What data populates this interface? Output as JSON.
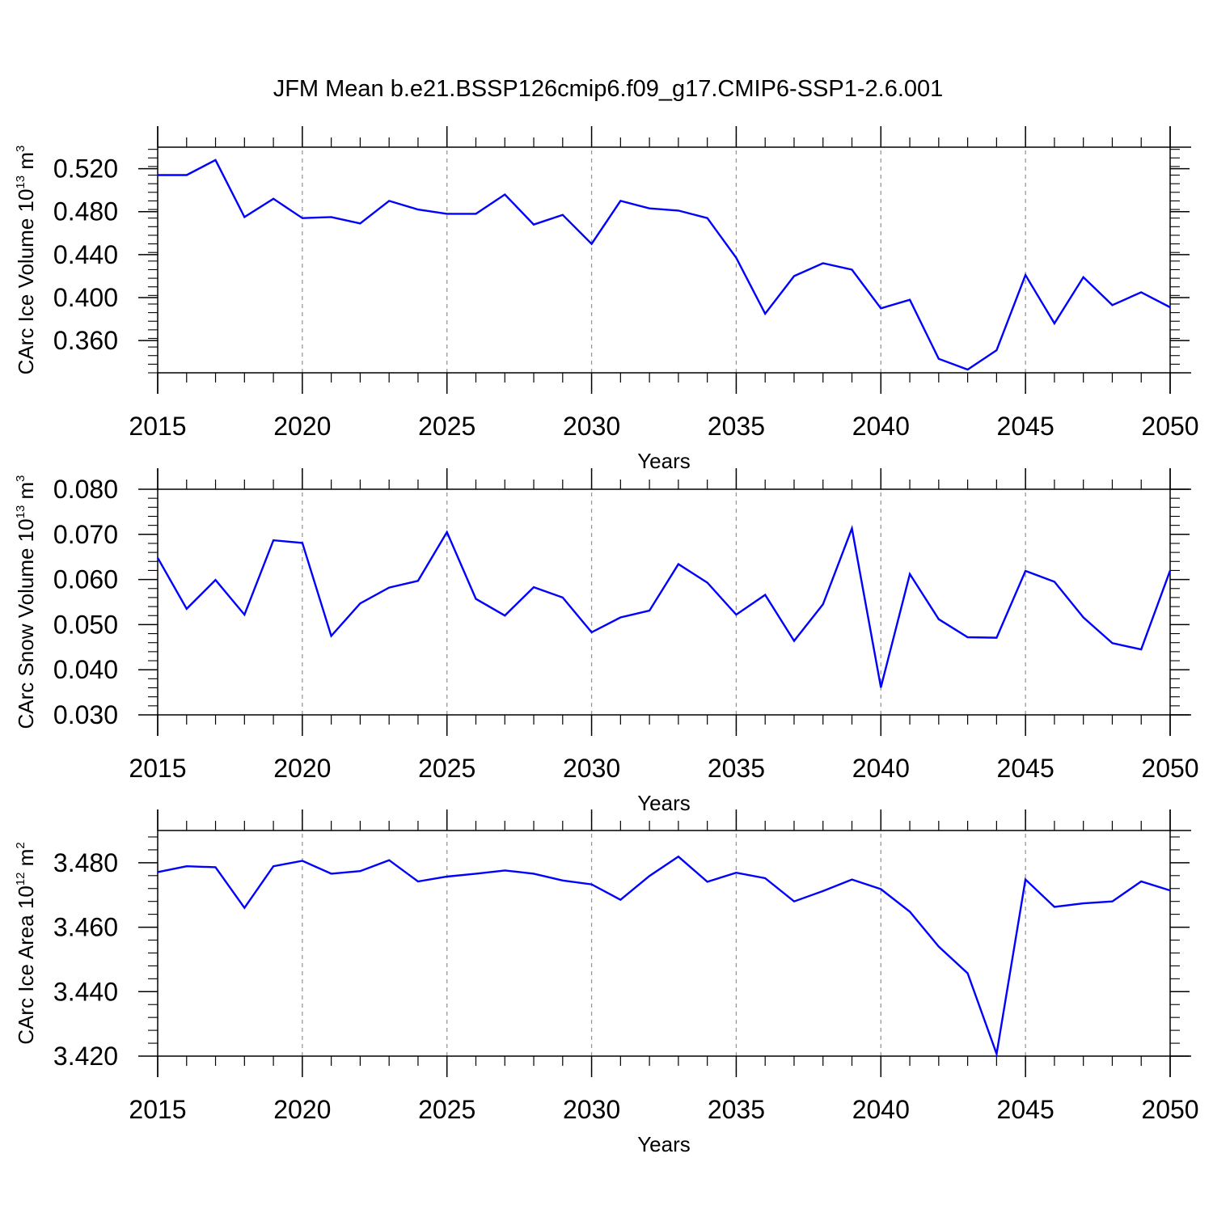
{
  "figure": {
    "title": "JFM Mean b.e21.BSSP126cmip6.f09_g17.CMIP6-SSP1-2.6.001"
  },
  "style": {
    "line_color": "#0000ff",
    "axis_color": "#000000",
    "grid_color": "#999999"
  },
  "chart_data": [
    {
      "type": "line",
      "title": "",
      "xlabel": "Years",
      "ylabel": {
        "text": "CArc Ice Volume 10",
        "sup": "13",
        "unit": " m",
        "unit_sup": "3"
      },
      "xlim": [
        2015,
        2050
      ],
      "xticks": [
        2015,
        2020,
        2025,
        2030,
        2035,
        2040,
        2045,
        2050
      ],
      "ylim": [
        0.33,
        0.54
      ],
      "yticks": [
        "0.360",
        "0.400",
        "0.440",
        "0.480",
        "0.520"
      ],
      "grid": "vertical dashed at major x ticks",
      "series": [
        {
          "x": [
            2015,
            2016,
            2017,
            2018,
            2019,
            2020,
            2021,
            2022,
            2023,
            2024,
            2025,
            2026,
            2027,
            2028,
            2029,
            2030,
            2031,
            2032,
            2033,
            2034,
            2035,
            2036,
            2037,
            2038,
            2039,
            2040,
            2041,
            2042,
            2043,
            2044,
            2045,
            2046,
            2047,
            2048,
            2049,
            2050
          ],
          "values": [
            0.514,
            0.514,
            0.528,
            0.475,
            0.492,
            0.474,
            0.475,
            0.469,
            0.49,
            0.482,
            0.478,
            0.478,
            0.496,
            0.468,
            0.477,
            0.45,
            0.49,
            0.483,
            0.481,
            0.474,
            0.437,
            0.385,
            0.42,
            0.432,
            0.426,
            0.39,
            0.398,
            0.343,
            0.333,
            0.351,
            0.421,
            0.376,
            0.419,
            0.393,
            0.405,
            0.391
          ]
        }
      ]
    },
    {
      "type": "line",
      "title": "",
      "xlabel": "Years",
      "ylabel": {
        "text": "CArc Snow Volume 10",
        "sup": "13",
        "unit": " m",
        "unit_sup": "3"
      },
      "xlim": [
        2015,
        2050
      ],
      "xticks": [
        2015,
        2020,
        2025,
        2030,
        2035,
        2040,
        2045,
        2050
      ],
      "ylim": [
        0.03,
        0.08
      ],
      "yticks": [
        "0.030",
        "0.040",
        "0.050",
        "0.060",
        "0.070",
        "0.080"
      ],
      "grid": "vertical dashed at major x ticks",
      "series": [
        {
          "x": [
            2015,
            2016,
            2017,
            2018,
            2019,
            2020,
            2021,
            2022,
            2023,
            2024,
            2025,
            2026,
            2027,
            2028,
            2029,
            2030,
            2031,
            2032,
            2033,
            2034,
            2035,
            2036,
            2037,
            2038,
            2039,
            2040,
            2041,
            2042,
            2043,
            2044,
            2045,
            2046,
            2047,
            2048,
            2049,
            2050
          ],
          "values": [
            0.0648,
            0.0535,
            0.0599,
            0.0522,
            0.0687,
            0.0681,
            0.0475,
            0.0547,
            0.0582,
            0.0597,
            0.0705,
            0.0557,
            0.052,
            0.0583,
            0.056,
            0.0483,
            0.0516,
            0.0531,
            0.0634,
            0.0593,
            0.0522,
            0.0566,
            0.0464,
            0.0545,
            0.0713,
            0.0361,
            0.0612,
            0.0512,
            0.0472,
            0.0471,
            0.0619,
            0.0595,
            0.0516,
            0.0459,
            0.0445,
            0.062
          ]
        }
      ]
    },
    {
      "type": "line",
      "title": "",
      "xlabel": "Years",
      "ylabel": {
        "text": "CArc Ice Area 10",
        "sup": "12",
        "unit": " m",
        "unit_sup": "2"
      },
      "xlim": [
        2015,
        2050
      ],
      "xticks": [
        2015,
        2020,
        2025,
        2030,
        2035,
        2040,
        2045,
        2050
      ],
      "ylim": [
        3.42,
        3.49
      ],
      "yticks": [
        "3.420",
        "3.440",
        "3.460",
        "3.480"
      ],
      "grid": "vertical dashed at major x ticks",
      "series": [
        {
          "x": [
            2015,
            2016,
            2017,
            2018,
            2019,
            2020,
            2021,
            2022,
            2023,
            2024,
            2025,
            2026,
            2027,
            2028,
            2029,
            2030,
            2031,
            2032,
            2033,
            2034,
            2035,
            2036,
            2037,
            2038,
            2039,
            2040,
            2041,
            2042,
            2043,
            2044,
            2045,
            2046,
            2047,
            2048,
            2049,
            2050
          ],
          "values": [
            3.4771,
            3.4789,
            3.4786,
            3.466,
            3.4789,
            3.4806,
            3.4766,
            3.4774,
            3.4808,
            3.4742,
            3.4757,
            3.4766,
            3.4776,
            3.4766,
            3.4745,
            3.4733,
            3.4685,
            3.4759,
            3.4819,
            3.4741,
            3.4769,
            3.4752,
            3.468,
            3.4712,
            3.4748,
            3.4718,
            3.4648,
            3.454,
            3.4457,
            3.4207,
            3.4748,
            3.4663,
            3.4674,
            3.468,
            3.4742,
            3.4714
          ]
        }
      ]
    }
  ]
}
